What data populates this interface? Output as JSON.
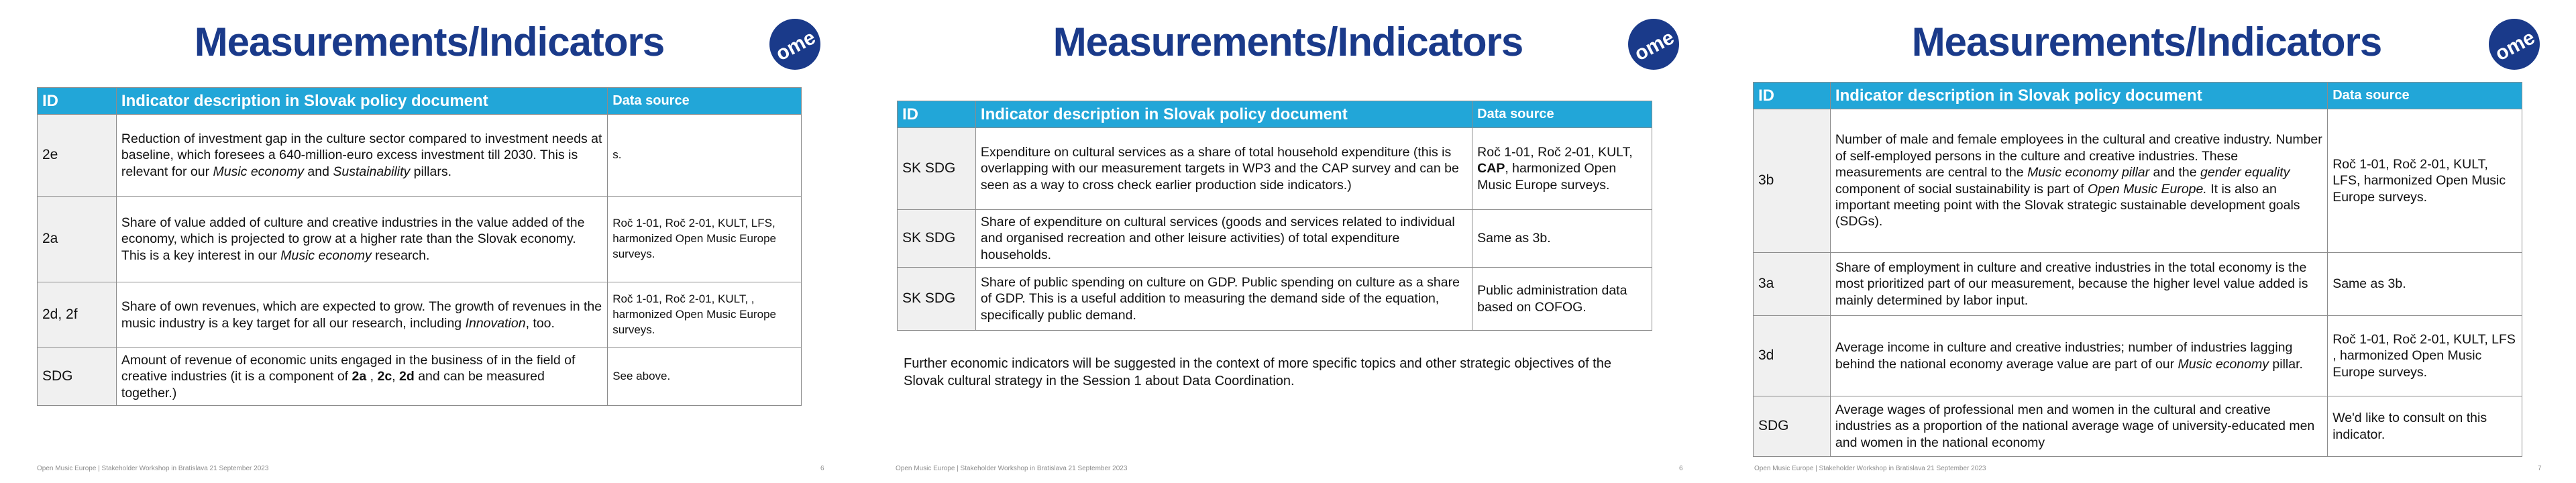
{
  "brand": {
    "logo_text": "ome",
    "title_color": "#1a3a8a",
    "header_color": "#22a6d8"
  },
  "footer_text": "Open Music Europe | Stakeholder Workshop in Bratislava 21 September 2023",
  "slides": [
    {
      "title": "Measurements/Indicators",
      "page_number": "6",
      "headers": {
        "id": "ID",
        "description": "Indicator description in Slovak policy document",
        "source": "Data source"
      },
      "rows": [
        {
          "id": "2e",
          "desc": [
            "Reduction of investment gap in the culture sector compared to investment needs at baseline, which foresees a 640-million-euro excess investment till 2030. This is relevant for our ",
            "Music economy",
            " and ",
            "Sustainability",
            " pillars."
          ],
          "source": "s."
        },
        {
          "id": "2a",
          "desc": [
            "Share of value added of culture and creative industries in the value added of the economy, which is projected to grow at a higher rate than the Slovak economy. This is a key interest in our ",
            "Music economy",
            " research."
          ],
          "source": "Roč 1-01, Roč 2-01, KULT, LFS, harmonized Open Music Europe surveys."
        },
        {
          "id": "2d, 2f",
          "desc": [
            "Share of own revenues, which are expected to grow. The growth of revenues in the music industry is a key target for all our research, including ",
            "Innovation",
            ", too."
          ],
          "source": "Roč 1-01, Roč 2-01, KULT, , harmonized Open Music Europe surveys."
        },
        {
          "id": "SDG",
          "desc": [
            "Amount of revenue of economic units engaged in the business of in the field of creative industries (it is a component of ",
            "2a",
            " , ",
            "2c",
            ", ",
            "2d",
            " and can be measured together.)"
          ],
          "source": "See above."
        }
      ]
    },
    {
      "title": "Measurements/Indicators",
      "page_number": "6",
      "headers": {
        "id": "ID",
        "description": "Indicator description in Slovak policy document",
        "source": "Data source"
      },
      "rows": [
        {
          "id": "SK SDG",
          "desc": "Expenditure on cultural services  as a share of total household expenditure (this is overlapping with our measurement targets in WP3 and the CAP survey and can be seen as a way to cross check earlier production side indicators.)",
          "source": [
            "Roč 1-01, Roč 2-01, KULT, ",
            "CAP",
            ", harmonized Open Music Europe surveys."
          ]
        },
        {
          "id": "SK SDG",
          "desc": "Share of expenditure on cultural services (goods and services related to individual and organised recreation and other leisure activities) of total expenditure households.",
          "source": "Same as 3b."
        },
        {
          "id": "SK SDG",
          "desc": "Share of public spending on culture on GDP. Public spending on culture as a share of GDP. This is a useful addition to measuring the demand side of the equation, specifically public demand.",
          "source": "Public administration data based on COFOG."
        }
      ],
      "note": "Further economic indicators will be suggested in the context of more specific topics and other strategic objectives of the Slovak cultural strategy in the Session 1 about Data Coordination."
    },
    {
      "title": "Measurements/Indicators",
      "page_number": "7",
      "headers": {
        "id": "ID",
        "description": "Indicator description in Slovak policy document",
        "source": "Data source"
      },
      "rows": [
        {
          "id": "3b",
          "desc": [
            "Number of male and female employees in the cultural and creative industry. Number of self-employed persons in the culture and creative industries. These measurements are central to the ",
            "Music economy pillar",
            " and the ",
            "gender equality",
            " component of social sustainability is part of ",
            "Open Music Europe.",
            "  It is also an important meeting point with the Slovak strategic sustainable development goals (SDGs)."
          ],
          "source": "Roč 1-01, Roč 2-01, KULT, LFS, harmonized Open Music Europe surveys."
        },
        {
          "id": "3a",
          "desc": "Share of employment in culture and creative industries in the total economy is the most prioritized part of our measurement, because the higher level value added is mainly determined by labor input.",
          "source": "Same as 3b."
        },
        {
          "id": "3d",
          "desc": [
            "Average income in culture and creative industries; number of industries lagging behind the national economy average value are part of our ",
            "Music economy",
            " pillar."
          ],
          "source": "Roč 1-01, Roč 2-01, KULT, LFS , harmonized Open Music Europe surveys."
        },
        {
          "id": "SDG",
          "desc": "Average wages of professional men and women in the cultural and creative industries as a proportion of the national average wage of university-educated men and women in the national economy",
          "source": "We'd like to consult on this indicator."
        }
      ]
    }
  ]
}
